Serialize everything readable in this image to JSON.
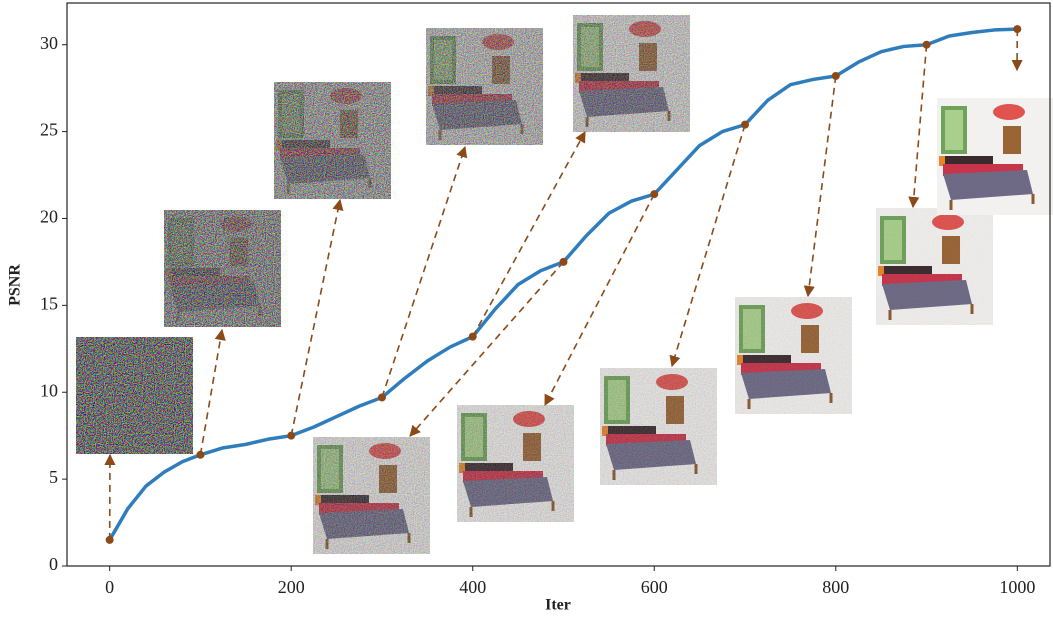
{
  "chart_data": {
    "type": "line",
    "x_label": "Iter",
    "y_label": "PSNR",
    "xlim": [
      -47,
      1036
    ],
    "ylim": [
      0,
      32.4
    ],
    "xticks": [
      0,
      200,
      400,
      600,
      800,
      1000
    ],
    "yticks": [
      0,
      5,
      10,
      15,
      20,
      25,
      30
    ],
    "series": [
      {
        "color": "#2f7dbd",
        "x": [
          0,
          20,
          40,
          60,
          80,
          100,
          125,
          150,
          175,
          200,
          225,
          250,
          275,
          300,
          325,
          350,
          375,
          400,
          425,
          450,
          475,
          500,
          525,
          550,
          575,
          600,
          625,
          650,
          675,
          700,
          725,
          750,
          775,
          800,
          825,
          850,
          875,
          900,
          925,
          950,
          975,
          1000
        ],
        "values": [
          1.5,
          3.3,
          4.6,
          5.4,
          6.0,
          6.4,
          6.8,
          7.0,
          7.3,
          7.5,
          8.0,
          8.6,
          9.2,
          9.7,
          10.8,
          11.8,
          12.6,
          13.2,
          14.8,
          16.2,
          17.0,
          17.5,
          19.0,
          20.3,
          21.0,
          21.4,
          22.8,
          24.2,
          25.0,
          25.4,
          26.8,
          27.7,
          28.0,
          28.2,
          29.0,
          29.6,
          29.9,
          30.0,
          30.5,
          30.7,
          30.85,
          30.9
        ]
      }
    ],
    "markers": {
      "color": "#8b4a17",
      "x": [
        0,
        100,
        200,
        300,
        400,
        500,
        600,
        700,
        800,
        900,
        1000
      ],
      "values": [
        1.5,
        6.4,
        7.5,
        9.7,
        13.2,
        17.5,
        21.4,
        25.4,
        28.2,
        30.0,
        30.9
      ]
    }
  }
}
